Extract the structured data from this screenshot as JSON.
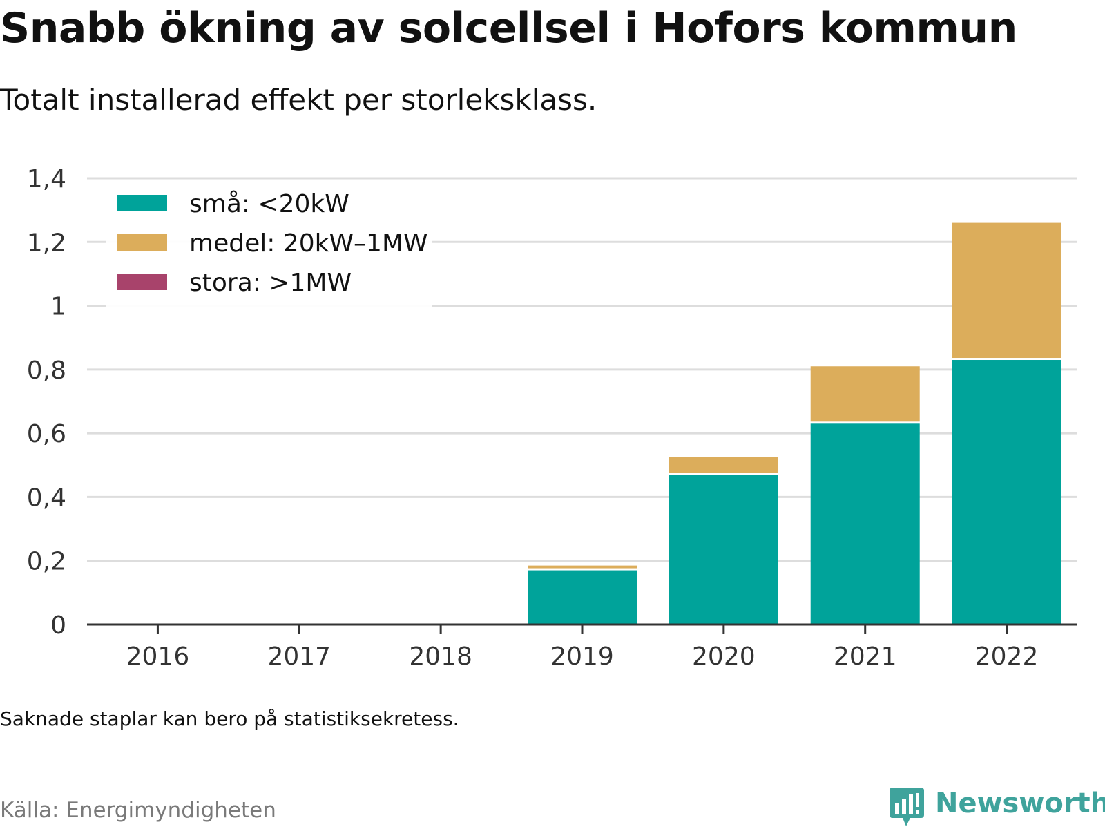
{
  "title": "Snabb ökning av solcellsel i Hofors kommun",
  "subtitle": "Totalt installerad effekt per storleksklass.",
  "note": "Saknade staplar kan bero på statistiksekretess.",
  "source": "Källa: Energimyndigheten",
  "brand": "Newsworthy",
  "chart_data": {
    "type": "bar",
    "stacked": true,
    "categories": [
      "2016",
      "2017",
      "2018",
      "2019",
      "2020",
      "2021",
      "2022"
    ],
    "series": [
      {
        "name": "små: <20kW",
        "color": "#00a39a",
        "values": [
          0,
          0,
          0,
          0.17,
          0.47,
          0.63,
          0.83
        ]
      },
      {
        "name": "medel: 20kW–1MW",
        "color": "#dcad5b",
        "values": [
          0,
          0,
          0,
          0.015,
          0.055,
          0.18,
          0.43
        ]
      },
      {
        "name": "stora: >1MW",
        "color": "#a8436b",
        "values": [
          0,
          0,
          0,
          0,
          0,
          0,
          0
        ]
      }
    ],
    "ylim": [
      0,
      1.4
    ],
    "yticks": [
      "0",
      "0,2",
      "0,4",
      "0,6",
      "0,8",
      "1",
      "1,2",
      "1,4"
    ],
    "ytick_values": [
      0,
      0.2,
      0.4,
      0.6,
      0.8,
      1,
      1.2,
      1.4
    ],
    "grid": true,
    "legend_position": "top-left",
    "xlabel": "",
    "ylabel": ""
  }
}
